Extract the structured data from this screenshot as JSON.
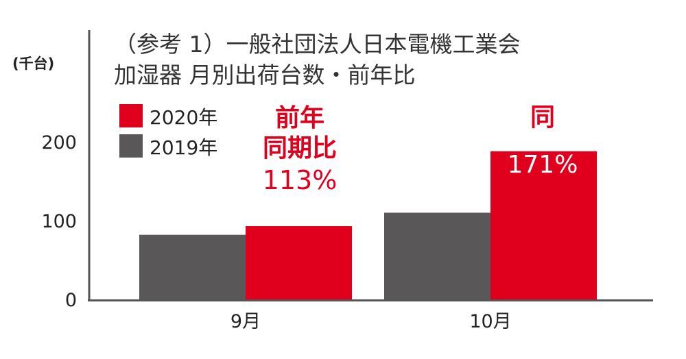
{
  "title": {
    "line1": "（参考 1）一般社団法人日本電機工業会",
    "line2": "加湿器  月別出荷台数・前年比"
  },
  "unit": "(千台)",
  "legend": [
    {
      "label": "2020年",
      "color": "#e0001e"
    },
    {
      "label": "2019年",
      "color": "#595757"
    }
  ],
  "annotations": {
    "sep_line1": "前年",
    "sep_line2": "同期比",
    "sep_pct": "113%",
    "oct_label": "同",
    "oct_pct": "171%"
  },
  "chart_data": {
    "type": "bar",
    "categories": [
      "9月",
      "10月"
    ],
    "series": [
      {
        "name": "2019年",
        "color": "#595757",
        "values": [
          82,
          110
        ]
      },
      {
        "name": "2020年",
        "color": "#e0001e",
        "values": [
          93,
          188
        ]
      }
    ],
    "ylim": [
      0,
      230
    ],
    "yticks": [
      0,
      100,
      200
    ],
    "grid": false,
    "legend_position": "top-left"
  }
}
